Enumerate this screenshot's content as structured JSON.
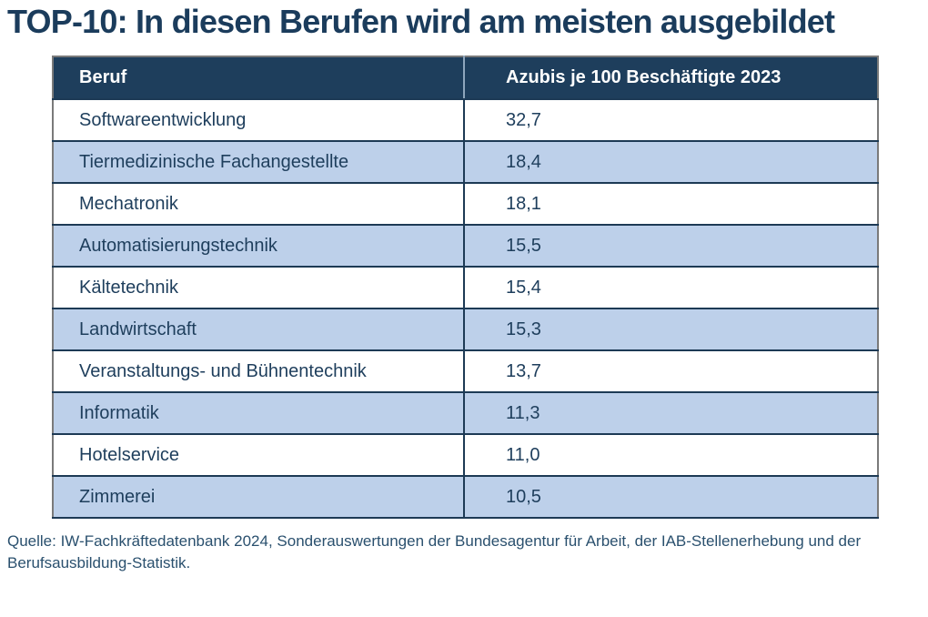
{
  "title": "TOP-10: In diesen Berufen wird am meisten ausgebildet",
  "table": {
    "columns": [
      "Beruf",
      "Azubis je 100 Beschäftigte 2023"
    ],
    "rows": [
      {
        "beruf": "Softwareentwicklung",
        "value": "32,7"
      },
      {
        "beruf": "Tiermedizinische Fachangestellte",
        "value": "18,4"
      },
      {
        "beruf": "Mechatronik",
        "value": "18,1"
      },
      {
        "beruf": "Automatisierungstechnik",
        "value": "15,5"
      },
      {
        "beruf": "Kältetechnik",
        "value": "15,4"
      },
      {
        "beruf": "Landwirtschaft",
        "value": "15,3"
      },
      {
        "beruf": "Veranstaltungs- und Bühnentechnik",
        "value": "13,7"
      },
      {
        "beruf": "Informatik",
        "value": "11,3"
      },
      {
        "beruf": "Hotelservice",
        "value": "11,0"
      },
      {
        "beruf": "Zimmerei",
        "value": "10,5"
      }
    ]
  },
  "source": "Quelle: IW-Fachkräftedatenbank 2024, Sonderauswertungen der Bundesagentur für Arbeit, der IAB-Stellenerhebung und der Berufsausbildung-Statistik.",
  "colors": {
    "header_bg": "#1E3E5C",
    "row_alt": "#BDD0EA",
    "row_default": "#FFFFFF",
    "cell_text": "#1E3E5C",
    "title": "#1B3C5C",
    "source_text": "#2A506E",
    "border_outer": "#7A7A7A",
    "border_inner": "#1D3A55",
    "header_divider": "#8FA6BC"
  },
  "chart_data": {
    "type": "table",
    "title": "TOP-10: In diesen Berufen wird am meisten ausgebildet",
    "columns": [
      "Beruf",
      "Azubis je 100 Beschäftigte 2023"
    ],
    "categories": [
      "Softwareentwicklung",
      "Tiermedizinische Fachangestellte",
      "Mechatronik",
      "Automatisierungstechnik",
      "Kältetechnik",
      "Landwirtschaft",
      "Veranstaltungs- und Bühnentechnik",
      "Informatik",
      "Hotelservice",
      "Zimmerei"
    ],
    "values": [
      32.7,
      18.4,
      18.1,
      15.5,
      15.4,
      15.3,
      13.7,
      11.3,
      11.0,
      10.5
    ],
    "value_unit": "Azubis je 100 Beschäftigte 2023",
    "source": "Quelle: IW-Fachkräftedatenbank 2024, Sonderauswertungen der Bundesagentur für Arbeit, der IAB-Stellenerhebung und der Berufsausbildung-Statistik."
  }
}
